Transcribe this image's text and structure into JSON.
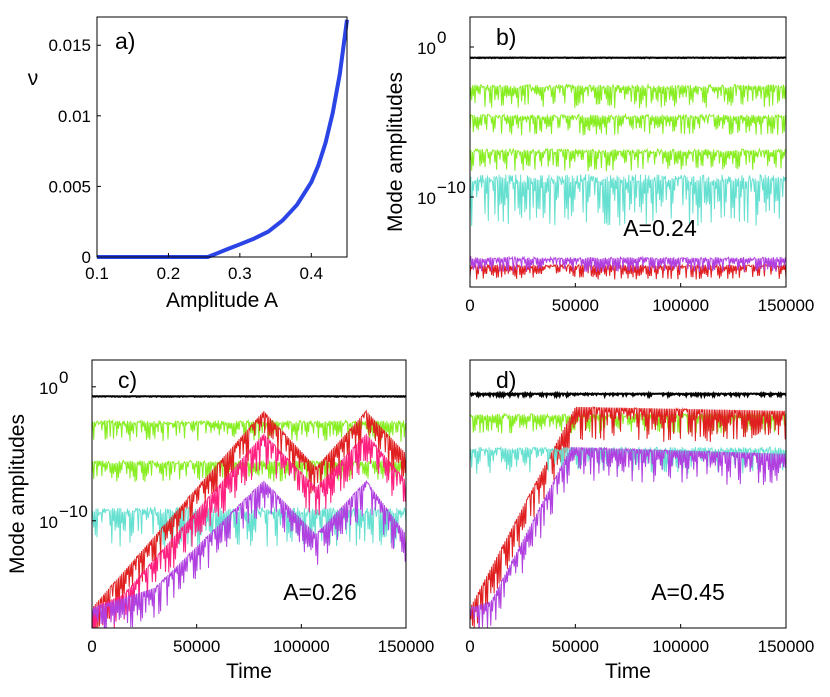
{
  "figure": {
    "panels": [
      "a)",
      "b)",
      "c)",
      "d)"
    ]
  },
  "chart_data": [
    {
      "panel": "a)",
      "type": "line",
      "xlabel": "Amplitude  A",
      "ylabel": "ν",
      "xlim": [
        0.1,
        0.45
      ],
      "ylim": [
        0,
        0.017
      ],
      "xticks": [
        "0.1",
        "0.2",
        "0.3",
        "0.4"
      ],
      "xtick_values": [
        0.1,
        0.2,
        0.3,
        0.4
      ],
      "yticks": [
        "0",
        "0.005",
        "0.01",
        "0.015"
      ],
      "ytick_values": [
        0,
        0.005,
        0.01,
        0.015
      ],
      "series": [
        {
          "name": "nu",
          "color": "#2b44e6",
          "x": [
            0.1,
            0.2,
            0.255,
            0.26,
            0.27,
            0.28,
            0.3,
            0.32,
            0.34,
            0.36,
            0.38,
            0.4,
            0.41,
            0.42,
            0.43,
            0.44,
            0.45
          ],
          "y": [
            0,
            0,
            0,
            0.0001,
            0.0003,
            0.0005,
            0.0009,
            0.0013,
            0.0018,
            0.0026,
            0.0037,
            0.0053,
            0.0065,
            0.0081,
            0.0102,
            0.013,
            0.0168
          ]
        }
      ]
    },
    {
      "panel": "b)",
      "type": "line",
      "scale": "log",
      "ylabel": "Mode amplitudes",
      "annotation": "A=0.24",
      "xlim": [
        0,
        150000
      ],
      "ylog_range": [
        -16,
        2
      ],
      "xticks": [
        "0",
        "50000",
        "100000",
        "150000"
      ],
      "xtick_values": [
        0,
        50000,
        100000,
        150000
      ],
      "yticks": [
        "10",
        "10"
      ],
      "ytick_exponents": [
        "0",
        "−10"
      ],
      "ytick_values": [
        0,
        -10
      ],
      "series": [
        {
          "name": "black",
          "color": "#000000",
          "log_base": -0.7,
          "log_spread": 0.05,
          "start_log": -0.7,
          "start_t": 0
        },
        {
          "name": "green",
          "color": "#88ee22",
          "log_base": -2.5,
          "log_spread": 1.6,
          "start_log": -2.5,
          "start_t": 0
        },
        {
          "name": "green2",
          "color": "#88ee22",
          "log_base": -4.5,
          "log_spread": 1.4,
          "start_log": -4.5,
          "start_t": 0
        },
        {
          "name": "green3",
          "color": "#88ee22",
          "log_base": -6.8,
          "log_spread": 1.5,
          "start_log": -6.8,
          "start_t": 0
        },
        {
          "name": "cyan",
          "color": "#66e0d0",
          "log_base": -8.5,
          "log_spread": 3.5,
          "start_log": -8.5,
          "start_t": 0
        },
        {
          "name": "red",
          "color": "#e02020",
          "log_base": -14.5,
          "log_spread": 1.0,
          "start_log": -15.5,
          "start_t": 0
        },
        {
          "name": "purple",
          "color": "#b040e0",
          "log_base": -14.0,
          "log_spread": 1.0,
          "start_log": -15.0,
          "start_t": 0
        }
      ]
    },
    {
      "panel": "c)",
      "type": "line",
      "scale": "log",
      "xlabel": "Time",
      "ylabel": "Mode amplitudes",
      "annotation": "A=0.26",
      "xlim": [
        0,
        150000
      ],
      "ylog_range": [
        -18,
        2
      ],
      "xticks": [
        "0",
        "50000",
        "100000",
        "150000"
      ],
      "xtick_values": [
        0,
        50000,
        100000,
        150000
      ],
      "yticks": [
        "10",
        "10"
      ],
      "ytick_exponents": [
        "0",
        "−10"
      ],
      "ytick_values": [
        0,
        -10
      ],
      "series": [
        {
          "name": "black",
          "color": "#000000",
          "log_base": -0.7,
          "log_spread": 0.05
        },
        {
          "name": "green",
          "color": "#88ee22",
          "log_base": -2.5,
          "log_spread": 1.6
        },
        {
          "name": "green2",
          "color": "#88ee22",
          "log_base": -5.5,
          "log_spread": 1.6
        },
        {
          "name": "cyan",
          "color": "#66e0d0",
          "log_base": -9.0,
          "log_spread": 3.0
        },
        {
          "name": "red",
          "color": "#e02020",
          "peaks": [
            [
              0,
              -16.5
            ],
            [
              82000,
              -1.8
            ],
            [
              107000,
              -6.0
            ],
            [
              131000,
              -1.8
            ],
            [
              150000,
              -5.0
            ]
          ]
        },
        {
          "name": "magenta",
          "color": "#ff2080",
          "peaks": [
            [
              0,
              -16.5
            ],
            [
              15000,
              -15.5
            ],
            [
              82000,
              -3.5
            ],
            [
              107000,
              -7.5
            ],
            [
              131000,
              -3.5
            ],
            [
              150000,
              -7.0
            ]
          ]
        },
        {
          "name": "purple",
          "color": "#b040e0",
          "peaks": [
            [
              0,
              -16.5
            ],
            [
              30000,
              -15.0
            ],
            [
              82000,
              -7.0
            ],
            [
              107000,
              -11.0
            ],
            [
              131000,
              -7.0
            ],
            [
              150000,
              -11.0
            ]
          ]
        }
      ]
    },
    {
      "panel": "d)",
      "type": "line",
      "scale": "log",
      "xlabel": "Time",
      "annotation": "A=0.45",
      "xlim": [
        0,
        150000
      ],
      "ylog_range": [
        -18,
        2
      ],
      "xticks": [
        "0",
        "50000",
        "100000",
        "150000"
      ],
      "xtick_values": [
        0,
        50000,
        100000,
        150000
      ],
      "series": [
        {
          "name": "black",
          "color": "#000000",
          "log_base": -0.5,
          "log_spread": 0.2
        },
        {
          "name": "green",
          "color": "#88ee22",
          "log_base": -2.0,
          "log_spread": 1.5
        },
        {
          "name": "red",
          "color": "#e02020",
          "peaks": [
            [
              0,
              -16.5
            ],
            [
              50000,
              -1.5
            ],
            [
              150000,
              -1.8
            ]
          ]
        },
        {
          "name": "cyan",
          "color": "#66e0d0",
          "log_base": -4.5,
          "log_spread": 2.0
        },
        {
          "name": "purple",
          "color": "#b040e0",
          "peaks": [
            [
              0,
              -16.5
            ],
            [
              10000,
              -16.0
            ],
            [
              48000,
              -4.5
            ],
            [
              150000,
              -5.0
            ]
          ]
        }
      ]
    }
  ]
}
